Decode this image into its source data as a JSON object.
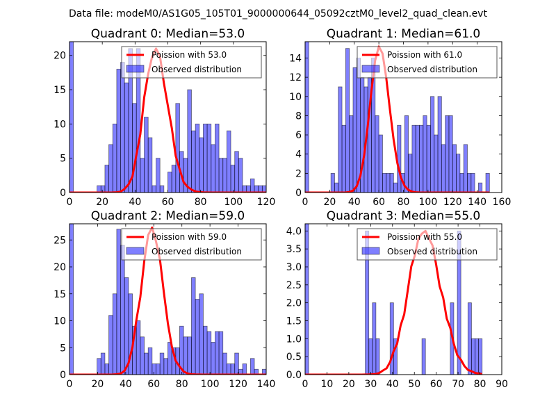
{
  "chart_data": {
    "suptitle": "Data file: modeM0/AS1G05_105T01_9000000644_05092cztM0_level2_quad_clean.evt",
    "colors": {
      "bar_fill": "#0000ff",
      "bar_fill_alpha": 0.5,
      "bar_edge": "#000000",
      "poisson_line": "#ff0000",
      "axes": "#000000",
      "background": "#ffffff"
    },
    "legend_labels": {
      "observed": "Observed distribution",
      "poisson_prefix": "Poission with "
    },
    "panels": [
      {
        "type": "bar",
        "title": "Quadrant 0: Median=53.0",
        "median": 53.0,
        "poisson_label": "Poission with 53.0",
        "observed_label": "Observed distribution",
        "legend": "top-right",
        "xlim": [
          0,
          120
        ],
        "ylim": [
          0,
          22
        ],
        "xticks": [
          0,
          20,
          40,
          60,
          80,
          100,
          120
        ],
        "yticks": [
          0,
          5,
          10,
          15,
          20
        ],
        "bin_width": 2.4,
        "bin_start": 0,
        "values": [
          22,
          0,
          0,
          0,
          0,
          0,
          0,
          1,
          1,
          4,
          7,
          10,
          18,
          19,
          16,
          21,
          13,
          21,
          5,
          11,
          8,
          1,
          5,
          1,
          0,
          3,
          4,
          13,
          6,
          5,
          15,
          9,
          10,
          8,
          10,
          10,
          7,
          10,
          5,
          5,
          9,
          4,
          6,
          5,
          1,
          1,
          2,
          1,
          1,
          1
        ],
        "poisson_peak": 21.0,
        "grid": false
      },
      {
        "type": "bar",
        "title": "Quadrant 1: Median=61.0",
        "median": 61.0,
        "poisson_label": "Poission with 61.0",
        "observed_label": "Observed distribution",
        "legend": "top-right",
        "xlim": [
          0,
          160
        ],
        "ylim": [
          0,
          15.7
        ],
        "xticks": [
          0,
          20,
          40,
          60,
          80,
          100,
          120,
          140,
          160
        ],
        "yticks": [
          0,
          2,
          4,
          6,
          8,
          10,
          12,
          14
        ],
        "bin_width": 3.0,
        "bin_start": 0,
        "values": [
          15.7,
          0,
          0,
          0,
          0,
          0,
          0,
          2,
          1,
          11,
          7,
          15,
          8,
          13,
          14,
          12,
          11,
          12,
          14,
          8,
          6,
          2,
          2,
          2,
          1,
          7,
          2,
          8,
          4,
          7,
          7,
          7,
          8,
          7,
          10,
          6,
          10,
          5,
          8,
          8,
          5,
          4,
          2,
          5,
          2,
          2,
          0,
          1,
          0,
          2
        ],
        "poisson_peak": 15.2,
        "grid": false
      },
      {
        "type": "bar",
        "title": "Quadrant 2: Median=59.0",
        "median": 59.0,
        "poisson_label": "Poission with 59.0",
        "observed_label": "Observed distribution",
        "legend": "top-right",
        "xlim": [
          0,
          140
        ],
        "ylim": [
          0,
          28
        ],
        "xticks": [
          0,
          20,
          40,
          60,
          80,
          100,
          120,
          140
        ],
        "yticks": [
          0,
          5,
          10,
          15,
          20,
          25
        ],
        "bin_width": 2.8,
        "bin_start": 0,
        "values": [
          28,
          0,
          0,
          0,
          0,
          0,
          0,
          3,
          4,
          2,
          11,
          15,
          27,
          24,
          18,
          15,
          9,
          10,
          7,
          4,
          5,
          2,
          2,
          4,
          3,
          6,
          5,
          5,
          9,
          7,
          7,
          18,
          14,
          15,
          9,
          8,
          6,
          8,
          8,
          4,
          2,
          2,
          4,
          1,
          2,
          0,
          3,
          1,
          0,
          1
        ],
        "poisson_peak": 27.3,
        "grid": false
      },
      {
        "type": "bar",
        "title": "Quadrant 3: Median=55.0",
        "median": 55.0,
        "poisson_label": "Poission with 55.0",
        "observed_label": "Observed distribution",
        "legend": "top-right",
        "xlim": [
          0,
          90
        ],
        "ylim": [
          0,
          4.2
        ],
        "xticks": [
          0,
          10,
          20,
          30,
          40,
          50,
          60,
          70,
          80,
          90
        ],
        "yticks": [
          0.0,
          0.5,
          1.0,
          1.5,
          2.0,
          2.5,
          3.0,
          3.5,
          4.0
        ],
        "ytick_decimals": 1,
        "bin_width": 1.62,
        "bin_start": 0,
        "values": [
          4.2,
          0,
          0,
          0,
          0,
          0,
          0,
          0,
          0,
          0,
          0,
          0,
          0,
          0,
          0,
          0,
          0,
          4,
          1,
          2,
          1,
          0,
          0,
          0,
          2,
          1,
          0,
          0,
          0,
          0,
          0,
          0,
          0,
          1,
          0,
          0,
          0,
          0,
          0,
          0,
          0,
          2,
          0,
          4,
          0,
          0,
          2,
          1,
          1,
          1
        ],
        "poisson_peak": 4.0,
        "grid": false
      }
    ]
  }
}
